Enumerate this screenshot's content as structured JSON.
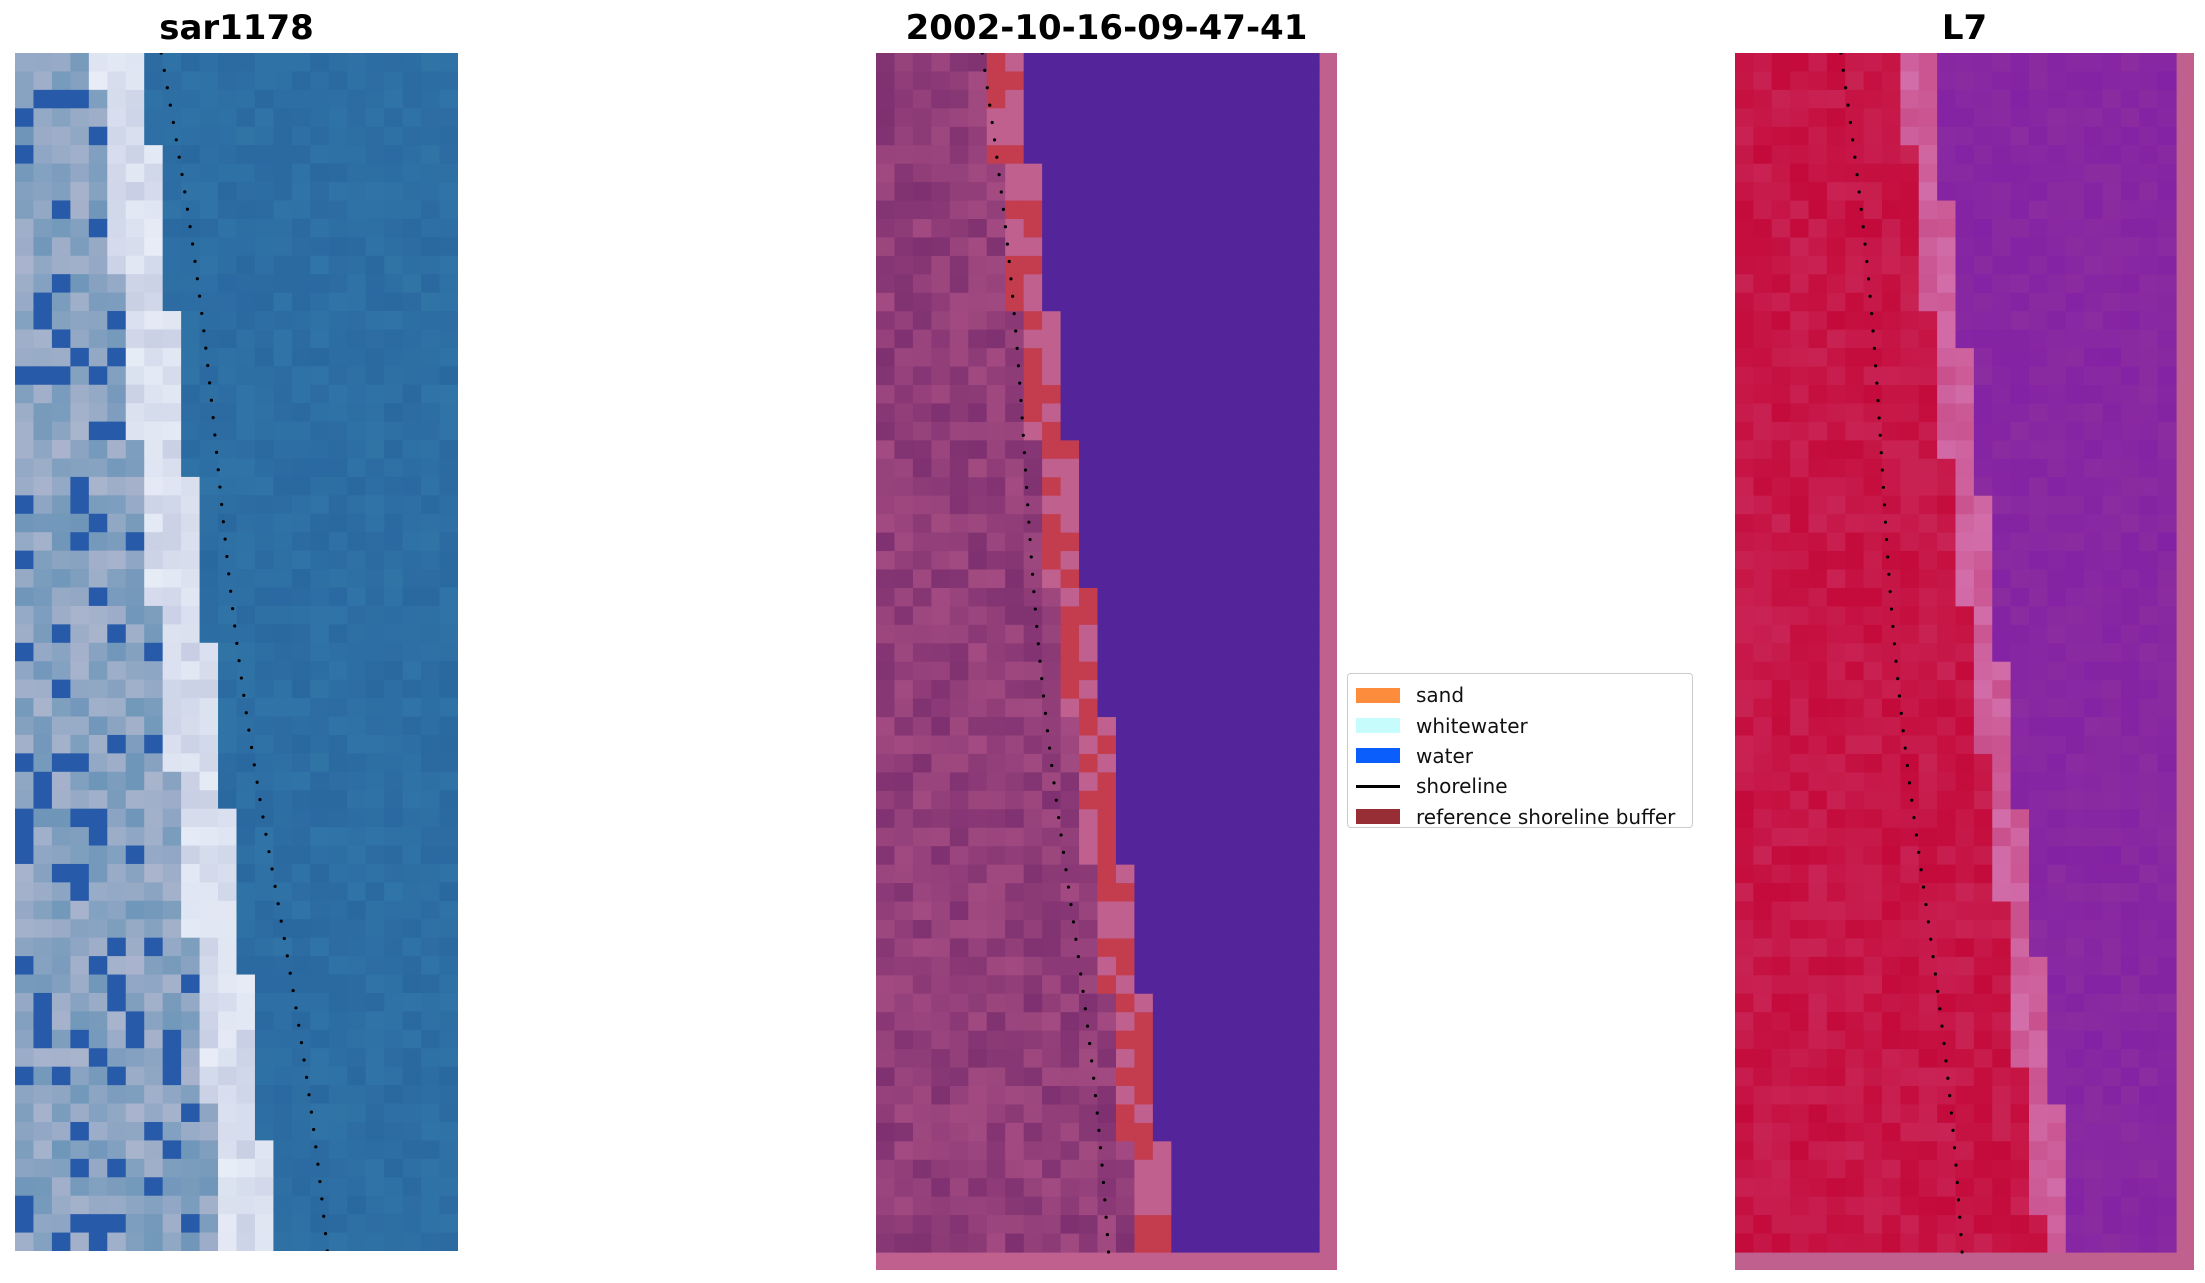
{
  "panels": {
    "left": {
      "title": "sar1178"
    },
    "middle": {
      "title": "2002-10-16-09-47-41"
    },
    "right": {
      "title": "L7"
    }
  },
  "legend": {
    "items": [
      {
        "label": "sand",
        "color": "#fd8c3c",
        "kind": "patch"
      },
      {
        "label": "whitewater",
        "color": "#c7fcfc",
        "kind": "patch"
      },
      {
        "label": "water",
        "color": "#0a5efb",
        "kind": "patch"
      },
      {
        "label": "shoreline",
        "color": "#000000",
        "kind": "line"
      },
      {
        "label": "reference shoreline buffer",
        "color": "#972e36",
        "kind": "patch"
      }
    ]
  },
  "colors": {
    "rgb_water": "#2a68a0",
    "rgb_beach": "#c8cfe4",
    "classified_water": "#54249a",
    "classified_land": "#7e3070",
    "classified_border": "#c0608f",
    "buffer_overlap": "#c33d4e",
    "nir_land": "#c40a3a",
    "nir_water": "#8b2ca0",
    "shoreline": "#000000"
  }
}
